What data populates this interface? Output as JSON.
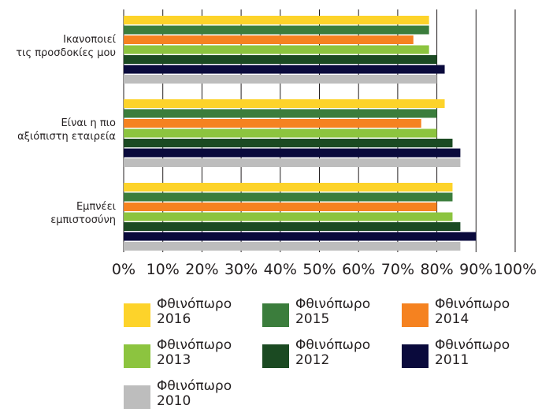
{
  "chart_data": {
    "type": "bar",
    "orientation": "horizontal",
    "categories": [
      [
        "Ικανοποιεί",
        "τις προσδοκίες μου"
      ],
      [
        "Είναι η πιο",
        "αξιόπιστη εταιρεία"
      ],
      [
        "Εμπνέει",
        "εμπιστοσύνη"
      ]
    ],
    "x_ticks": [
      "0%",
      "10%",
      "20%",
      "30%",
      "40%",
      "50%",
      "60%",
      "70%",
      "80%",
      "90%",
      "100%"
    ],
    "xlim": [
      0,
      100
    ],
    "grid": "vertical",
    "legend_position": "bottom",
    "series": [
      {
        "name": "Φθινόπωρο 2016",
        "color": "#fdd32a",
        "values": [
          78,
          82,
          84
        ]
      },
      {
        "name": "Φθινόπωρο 2015",
        "color": "#3b7d3c",
        "values": [
          78,
          80,
          84
        ]
      },
      {
        "name": "Φθινόπωρο 2014",
        "color": "#f58220",
        "values": [
          74,
          76,
          80
        ]
      },
      {
        "name": "Φθινόπωρο 2013",
        "color": "#8cc43f",
        "values": [
          78,
          80,
          84
        ]
      },
      {
        "name": "Φθινόπωρο 2012",
        "color": "#1b4a22",
        "values": [
          80,
          84,
          86
        ]
      },
      {
        "name": "Φθινόπωρο 2011",
        "color": "#0a0a3c",
        "values": [
          82,
          86,
          90
        ]
      },
      {
        "name": "Φθινόπωρο 2010",
        "color": "#bdbdbd",
        "values": [
          80,
          86,
          86
        ]
      }
    ]
  }
}
